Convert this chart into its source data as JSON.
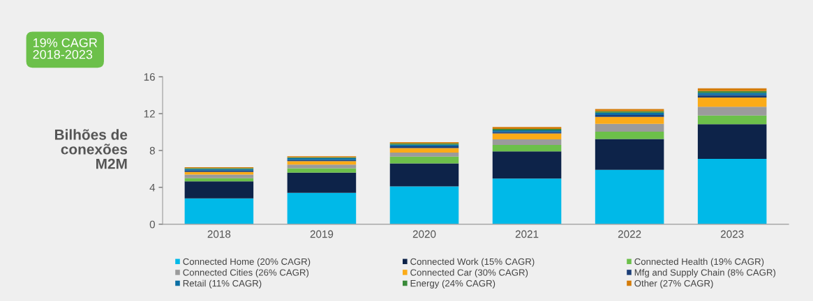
{
  "chart_data": {
    "type": "bar",
    "stacked": true,
    "ylabel": "Bilhões de\nconexões\nM2M",
    "annotations": [
      "19% CAGR\n2018-2023"
    ],
    "categories": [
      "2018",
      "2019",
      "2020",
      "2021",
      "2022",
      "2023"
    ],
    "series": [
      {
        "name": "Connected Home (20% CAGR)",
        "color": "#00b9e8",
        "values": [
          2.8,
          3.4,
          4.1,
          4.95,
          5.9,
          7.1
        ]
      },
      {
        "name": "Connected Work (15% CAGR)",
        "color": "#0d2349",
        "values": [
          1.85,
          2.2,
          2.5,
          2.95,
          3.35,
          3.75
        ]
      },
      {
        "name": "Connected Health (19% CAGR)",
        "color": "#6cc04a",
        "values": [
          0.35,
          0.48,
          0.74,
          0.7,
          0.8,
          0.95
        ]
      },
      {
        "name": "Connected Cities (26% CAGR)",
        "color": "#9b9b9b",
        "values": [
          0.4,
          0.38,
          0.43,
          0.6,
          0.85,
          0.95
        ]
      },
      {
        "name": "Connected Car (30% CAGR)",
        "color": "#fbab18",
        "values": [
          0.27,
          0.38,
          0.5,
          0.65,
          0.75,
          1.0
        ]
      },
      {
        "name": "Mfg and Supply Chain (8% CAGR)",
        "color": "#1d3f78",
        "values": [
          0.15,
          0.13,
          0.18,
          0.15,
          0.2,
          0.25
        ]
      },
      {
        "name": "Retail (11% CAGR)",
        "color": "#0b6fa4",
        "values": [
          0.17,
          0.22,
          0.2,
          0.2,
          0.25,
          0.25
        ]
      },
      {
        "name": "Energy (24% CAGR)",
        "color": "#3a8a3a",
        "values": [
          0.1,
          0.08,
          0.13,
          0.15,
          0.15,
          0.2
        ]
      },
      {
        "name": "Other (27% CAGR)",
        "color": "#d47c0a",
        "values": [
          0.1,
          0.11,
          0.12,
          0.2,
          0.25,
          0.3
        ]
      }
    ],
    "ylim": [
      0,
      16
    ],
    "yticks": [
      0,
      4,
      8,
      12,
      16
    ],
    "legend": "bottom",
    "grid": false
  }
}
